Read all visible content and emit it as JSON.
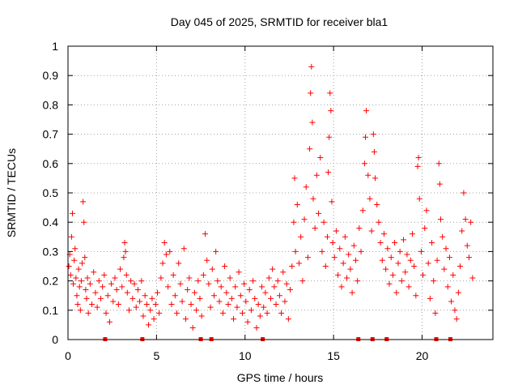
{
  "chart_data": {
    "type": "scatter",
    "title": "Day 045 of 2025, SRMTID for receiver bla1",
    "xlabel": "GPS time / hours",
    "ylabel": "SRMTID / TECUs",
    "xlim": [
      0,
      24
    ],
    "ylim": [
      0,
      1
    ],
    "xticks": [
      0,
      5,
      10,
      15,
      20
    ],
    "xtick_labels": [
      "0",
      "5",
      "10",
      "15",
      "20"
    ],
    "yticks": [
      0,
      0.1,
      0.2,
      0.3,
      0.4,
      0.5,
      0.6,
      0.7,
      0.8,
      0.9,
      1
    ],
    "ytick_labels": [
      "0",
      "0.1",
      "0.2",
      "0.3",
      "0.4",
      "0.5",
      "0.6",
      "0.7",
      "0.8",
      "0.9",
      "1"
    ],
    "grid": true,
    "marker": "+",
    "color": "#ff0000",
    "series": [
      {
        "name": "SRMTID",
        "points": [
          [
            0.05,
            0.25
          ],
          [
            0.1,
            0.29
          ],
          [
            0.15,
            0.22
          ],
          [
            0.2,
            0.35
          ],
          [
            0.25,
            0.43
          ],
          [
            0.3,
            0.19
          ],
          [
            0.35,
            0.27
          ],
          [
            0.4,
            0.31
          ],
          [
            0.45,
            0.21
          ],
          [
            0.5,
            0.15
          ],
          [
            0.55,
            0.12
          ],
          [
            0.6,
            0.24
          ],
          [
            0.65,
            0.18
          ],
          [
            0.7,
            0.1
          ],
          [
            0.75,
            0.2
          ],
          [
            0.8,
            0.26
          ],
          [
            0.85,
            0.47
          ],
          [
            0.9,
            0.4
          ],
          [
            0.95,
            0.28
          ],
          [
            1.0,
            0.17
          ],
          [
            1.05,
            0.14
          ],
          [
            1.1,
            0.21
          ],
          [
            1.15,
            0.09
          ],
          [
            1.25,
            0.19
          ],
          [
            1.35,
            0.12
          ],
          [
            1.45,
            0.23
          ],
          [
            1.55,
            0.16
          ],
          [
            1.65,
            0.11
          ],
          [
            1.75,
            0.2
          ],
          [
            1.85,
            0.14
          ],
          [
            1.95,
            0.18
          ],
          [
            2.05,
            0.22
          ],
          [
            2.15,
            0.09
          ],
          [
            2.25,
            0.15
          ],
          [
            2.35,
            0.06
          ],
          [
            2.45,
            0.19
          ],
          [
            2.55,
            0.13
          ],
          [
            2.65,
            0.21
          ],
          [
            2.75,
            0.17
          ],
          [
            2.85,
            0.12
          ],
          [
            2.95,
            0.24
          ],
          [
            3.05,
            0.18
          ],
          [
            3.15,
            0.28
          ],
          [
            3.2,
            0.33
          ],
          [
            3.25,
            0.3
          ],
          [
            3.3,
            0.22
          ],
          [
            3.35,
            0.16
          ],
          [
            3.45,
            0.1
          ],
          [
            3.55,
            0.2
          ],
          [
            3.65,
            0.14
          ],
          [
            3.75,
            0.19
          ],
          [
            3.85,
            0.11
          ],
          [
            3.95,
            0.17
          ],
          [
            4.05,
            0.13
          ],
          [
            4.15,
            0.2
          ],
          [
            4.25,
            0.08
          ],
          [
            4.35,
            0.15
          ],
          [
            4.45,
            0.12
          ],
          [
            4.55,
            0.05
          ],
          [
            4.65,
            0.1
          ],
          [
            4.75,
            0.14
          ],
          [
            4.85,
            0.07
          ],
          [
            4.95,
            0.12
          ],
          [
            5.05,
            0.16
          ],
          [
            5.15,
            0.09
          ],
          [
            5.25,
            0.21
          ],
          [
            5.35,
            0.26
          ],
          [
            5.45,
            0.33
          ],
          [
            5.55,
            0.29
          ],
          [
            5.65,
            0.18
          ],
          [
            5.75,
            0.3
          ],
          [
            5.85,
            0.12
          ],
          [
            5.95,
            0.22
          ],
          [
            6.05,
            0.15
          ],
          [
            6.15,
            0.09
          ],
          [
            6.25,
            0.26
          ],
          [
            6.35,
            0.19
          ],
          [
            6.45,
            0.13
          ],
          [
            6.55,
            0.31
          ],
          [
            6.65,
            0.07
          ],
          [
            6.75,
            0.17
          ],
          [
            6.85,
            0.21
          ],
          [
            6.95,
            0.12
          ],
          [
            7.05,
            0.04
          ],
          [
            7.15,
            0.16
          ],
          [
            7.25,
            0.1
          ],
          [
            7.35,
            0.2
          ],
          [
            7.45,
            0.14
          ],
          [
            7.55,
            0.08
          ],
          [
            7.65,
            0.22
          ],
          [
            7.75,
            0.36
          ],
          [
            7.85,
            0.27
          ],
          [
            7.95,
            0.19
          ],
          [
            8.05,
            0.11
          ],
          [
            8.15,
            0.24
          ],
          [
            8.25,
            0.15
          ],
          [
            8.35,
            0.3
          ],
          [
            8.45,
            0.2
          ],
          [
            8.55,
            0.13
          ],
          [
            8.65,
            0.18
          ],
          [
            8.75,
            0.09
          ],
          [
            8.85,
            0.25
          ],
          [
            8.95,
            0.16
          ],
          [
            9.05,
            0.12
          ],
          [
            9.15,
            0.21
          ],
          [
            9.25,
            0.14
          ],
          [
            9.35,
            0.07
          ],
          [
            9.45,
            0.18
          ],
          [
            9.55,
            0.11
          ],
          [
            9.65,
            0.23
          ],
          [
            9.75,
            0.15
          ],
          [
            9.85,
            0.09
          ],
          [
            9.95,
            0.19
          ],
          [
            10.05,
            0.13
          ],
          [
            10.15,
            0.06
          ],
          [
            10.25,
            0.17
          ],
          [
            10.35,
            0.1
          ],
          [
            10.45,
            0.2
          ],
          [
            10.55,
            0.14
          ],
          [
            10.65,
            0.04
          ],
          [
            10.75,
            0.12
          ],
          [
            10.85,
            0.08
          ],
          [
            10.95,
            0.18
          ],
          [
            11.05,
            0.11
          ],
          [
            11.15,
            0.16
          ],
          [
            11.25,
            0.09
          ],
          [
            11.35,
            0.21
          ],
          [
            11.45,
            0.14
          ],
          [
            11.55,
            0.24
          ],
          [
            11.65,
            0.18
          ],
          [
            11.75,
            0.12
          ],
          [
            11.85,
            0.2
          ],
          [
            11.95,
            0.15
          ],
          [
            12.05,
            0.09
          ],
          [
            12.15,
            0.23
          ],
          [
            12.25,
            0.13
          ],
          [
            12.35,
            0.19
          ],
          [
            12.45,
            0.07
          ],
          [
            12.55,
            0.17
          ],
          [
            12.65,
            0.25
          ],
          [
            12.75,
            0.4
          ],
          [
            12.8,
            0.55
          ],
          [
            12.85,
            0.3
          ],
          [
            12.95,
            0.46
          ],
          [
            13.05,
            0.26
          ],
          [
            13.15,
            0.35
          ],
          [
            13.25,
            0.2
          ],
          [
            13.35,
            0.41
          ],
          [
            13.45,
            0.52
          ],
          [
            13.55,
            0.28
          ],
          [
            13.65,
            0.65
          ],
          [
            13.7,
            0.84
          ],
          [
            13.75,
            0.93
          ],
          [
            13.8,
            0.74
          ],
          [
            13.85,
            0.48
          ],
          [
            13.95,
            0.38
          ],
          [
            14.05,
            0.56
          ],
          [
            14.15,
            0.43
          ],
          [
            14.25,
            0.62
          ],
          [
            14.35,
            0.3
          ],
          [
            14.45,
            0.4
          ],
          [
            14.55,
            0.25
          ],
          [
            14.65,
            0.35
          ],
          [
            14.7,
            0.57
          ],
          [
            14.75,
            0.69
          ],
          [
            14.8,
            0.84
          ],
          [
            14.85,
            0.78
          ],
          [
            14.9,
            0.47
          ],
          [
            14.95,
            0.33
          ],
          [
            15.05,
            0.28
          ],
          [
            15.15,
            0.37
          ],
          [
            15.25,
            0.22
          ],
          [
            15.35,
            0.31
          ],
          [
            15.45,
            0.18
          ],
          [
            15.55,
            0.26
          ],
          [
            15.65,
            0.35
          ],
          [
            15.75,
            0.21
          ],
          [
            15.85,
            0.29
          ],
          [
            15.95,
            0.24
          ],
          [
            16.05,
            0.16
          ],
          [
            16.15,
            0.32
          ],
          [
            16.25,
            0.27
          ],
          [
            16.35,
            0.2
          ],
          [
            16.45,
            0.38
          ],
          [
            16.55,
            0.3
          ],
          [
            16.65,
            0.44
          ],
          [
            16.75,
            0.6
          ],
          [
            16.8,
            0.69
          ],
          [
            16.85,
            0.78
          ],
          [
            16.95,
            0.56
          ],
          [
            17.05,
            0.48
          ],
          [
            17.15,
            0.37
          ],
          [
            17.25,
            0.7
          ],
          [
            17.3,
            0.64
          ],
          [
            17.35,
            0.55
          ],
          [
            17.45,
            0.46
          ],
          [
            17.55,
            0.4
          ],
          [
            17.65,
            0.33
          ],
          [
            17.75,
            0.27
          ],
          [
            17.85,
            0.36
          ],
          [
            17.95,
            0.24
          ],
          [
            18.05,
            0.31
          ],
          [
            18.15,
            0.19
          ],
          [
            18.25,
            0.28
          ],
          [
            18.35,
            0.22
          ],
          [
            18.45,
            0.33
          ],
          [
            18.55,
            0.16
          ],
          [
            18.65,
            0.26
          ],
          [
            18.75,
            0.3
          ],
          [
            18.85,
            0.2
          ],
          [
            18.95,
            0.34
          ],
          [
            19.05,
            0.23
          ],
          [
            19.15,
            0.29
          ],
          [
            19.25,
            0.18
          ],
          [
            19.35,
            0.27
          ],
          [
            19.45,
            0.36
          ],
          [
            19.55,
            0.25
          ],
          [
            19.65,
            0.15
          ],
          [
            19.75,
            0.59
          ],
          [
            19.8,
            0.62
          ],
          [
            19.85,
            0.48
          ],
          [
            19.95,
            0.3
          ],
          [
            20.05,
            0.22
          ],
          [
            20.15,
            0.38
          ],
          [
            20.25,
            0.44
          ],
          [
            20.35,
            0.26
          ],
          [
            20.45,
            0.14
          ],
          [
            20.55,
            0.33
          ],
          [
            20.65,
            0.2
          ],
          [
            20.75,
            0.09
          ],
          [
            20.85,
            0.27
          ],
          [
            20.95,
            0.6
          ],
          [
            21.0,
            0.53
          ],
          [
            21.05,
            0.41
          ],
          [
            21.15,
            0.35
          ],
          [
            21.25,
            0.24
          ],
          [
            21.35,
            0.31
          ],
          [
            21.45,
            0.18
          ],
          [
            21.55,
            0.28
          ],
          [
            21.65,
            0.13
          ],
          [
            21.75,
            0.22
          ],
          [
            21.85,
            0.1
          ],
          [
            21.95,
            0.07
          ],
          [
            22.05,
            0.16
          ],
          [
            22.15,
            0.25
          ],
          [
            22.25,
            0.37
          ],
          [
            22.35,
            0.5
          ],
          [
            22.45,
            0.41
          ],
          [
            22.55,
            0.32
          ],
          [
            22.65,
            0.28
          ],
          [
            22.75,
            0.4
          ],
          [
            22.85,
            0.21
          ]
        ]
      }
    ],
    "gap_markers": [
      2.1,
      4.2,
      7.5,
      8.1,
      11.0,
      16.4,
      17.2,
      18.0,
      20.8,
      21.6
    ]
  }
}
